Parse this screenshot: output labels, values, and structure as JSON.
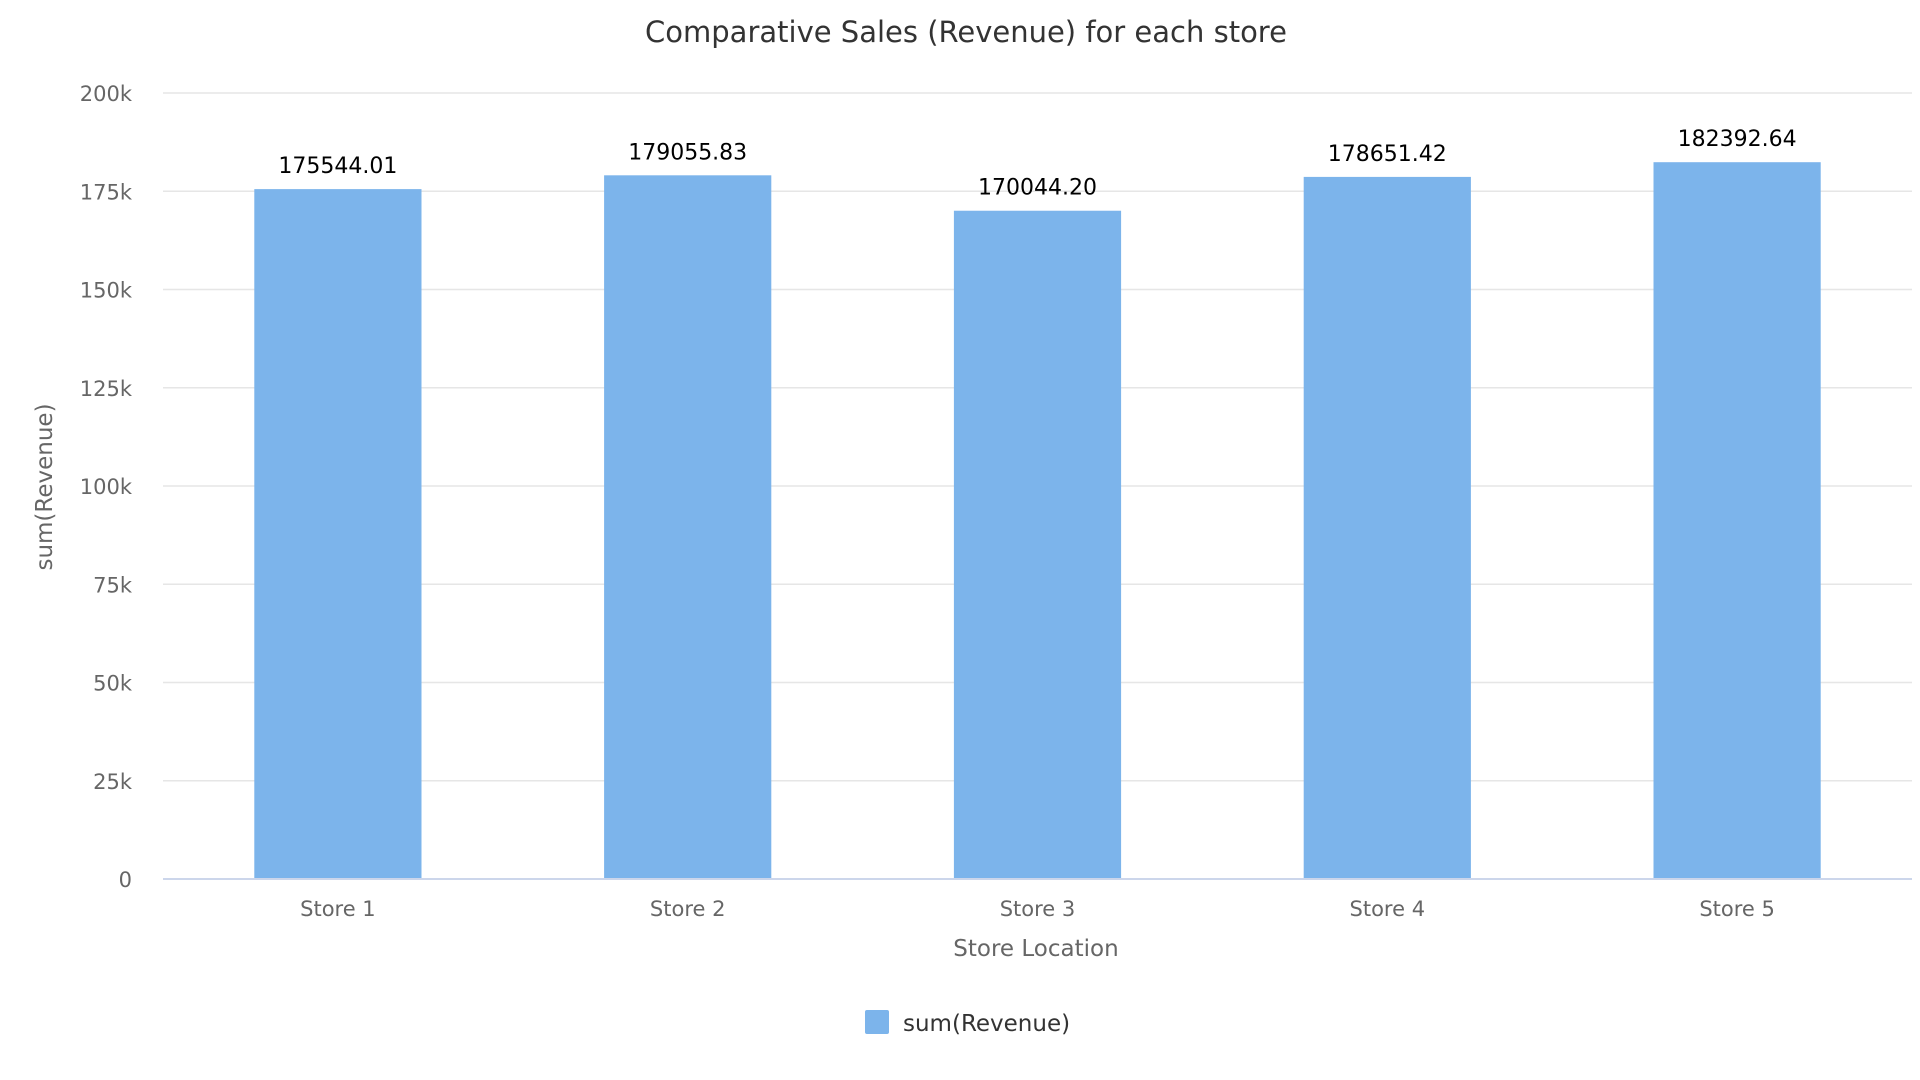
{
  "chart_data": {
    "type": "bar",
    "title": "Comparative Sales (Revenue) for each store",
    "xlabel": "Store Location",
    "ylabel": "sum(Revenue)",
    "categories": [
      "Store 1",
      "Store 2",
      "Store 3",
      "Store 4",
      "Store 5"
    ],
    "series": [
      {
        "name": "sum(Revenue)",
        "color": "#7cb4eb",
        "values": [
          175544.01,
          179055.83,
          170044.2,
          178651.42,
          182392.64
        ],
        "data_labels": [
          "175544.01",
          "179055.83",
          "170044.20",
          "178651.42",
          "182392.64"
        ]
      }
    ],
    "ylim": [
      0,
      200000
    ],
    "yticks": [
      {
        "value": 0,
        "label": "0"
      },
      {
        "value": 25000,
        "label": "25k"
      },
      {
        "value": 50000,
        "label": "50k"
      },
      {
        "value": 75000,
        "label": "75k"
      },
      {
        "value": 100000,
        "label": "100k"
      },
      {
        "value": 125000,
        "label": "125k"
      },
      {
        "value": 150000,
        "label": "150k"
      },
      {
        "value": 175000,
        "label": "175k"
      },
      {
        "value": 200000,
        "label": "200k"
      }
    ],
    "grid": true,
    "legend_position": "bottom-center"
  }
}
